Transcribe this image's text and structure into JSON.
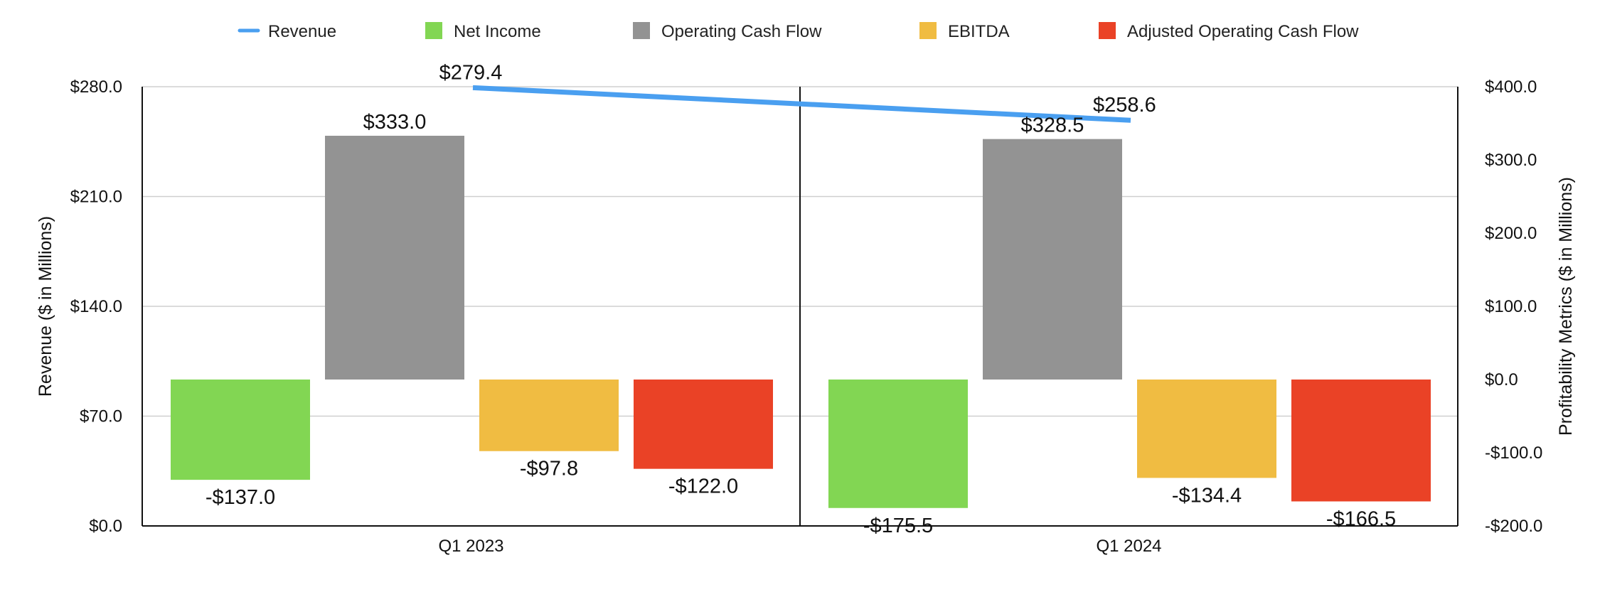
{
  "chart_data": {
    "type": "bar",
    "categories": [
      "Q1 2023",
      "Q1 2024"
    ],
    "legend": [
      {
        "name": "Revenue",
        "kind": "line",
        "color": "#4A9FF0"
      },
      {
        "name": "Net Income",
        "kind": "bar",
        "color": "#82D653"
      },
      {
        "name": "Operating Cash Flow",
        "kind": "bar",
        "color": "#939393"
      },
      {
        "name": "EBITDA",
        "kind": "bar",
        "color": "#F0BC42"
      },
      {
        "name": "Adjusted Operating Cash Flow",
        "kind": "bar",
        "color": "#EA4226"
      }
    ],
    "line_series": {
      "name": "Revenue",
      "axis": "left",
      "values": [
        279.4,
        258.6
      ],
      "labels": [
        "$279.4",
        "$258.6"
      ],
      "color": "#4A9FF0"
    },
    "bar_series": [
      {
        "name": "Net Income",
        "color": "#82D653",
        "values": [
          -137.0,
          -175.5
        ],
        "labels": [
          "-$137.0",
          "-$175.5"
        ]
      },
      {
        "name": "Operating Cash Flow",
        "color": "#939393",
        "values": [
          333.0,
          328.5
        ],
        "labels": [
          "$333.0",
          "$328.5"
        ]
      },
      {
        "name": "EBITDA",
        "color": "#F0BC42",
        "values": [
          -97.8,
          -134.4
        ],
        "labels": [
          "-$97.8",
          "-$134.4"
        ]
      },
      {
        "name": "Adjusted Operating Cash Flow",
        "color": "#EA4226",
        "values": [
          -122.0,
          -166.5
        ],
        "labels": [
          "-$122.0",
          "-$166.5"
        ]
      }
    ],
    "left_axis": {
      "title": "Revenue ($ in Millions)",
      "min": 0,
      "max": 280,
      "ticks": [
        0,
        70,
        140,
        210,
        280
      ],
      "tick_labels": [
        "$0.0",
        "$70.0",
        "$140.0",
        "$210.0",
        "$280.0"
      ]
    },
    "right_axis": {
      "title": "Profitability Metrics ($ in Millions)",
      "min": -200,
      "max": 400,
      "ticks": [
        -200,
        -100,
        0,
        100,
        200,
        300,
        400
      ],
      "tick_labels": [
        "-$200.0",
        "-$100.0",
        "$0.0",
        "$100.0",
        "$200.0",
        "$300.0",
        "$400.0"
      ]
    },
    "grid": true,
    "legend_position": "top"
  }
}
